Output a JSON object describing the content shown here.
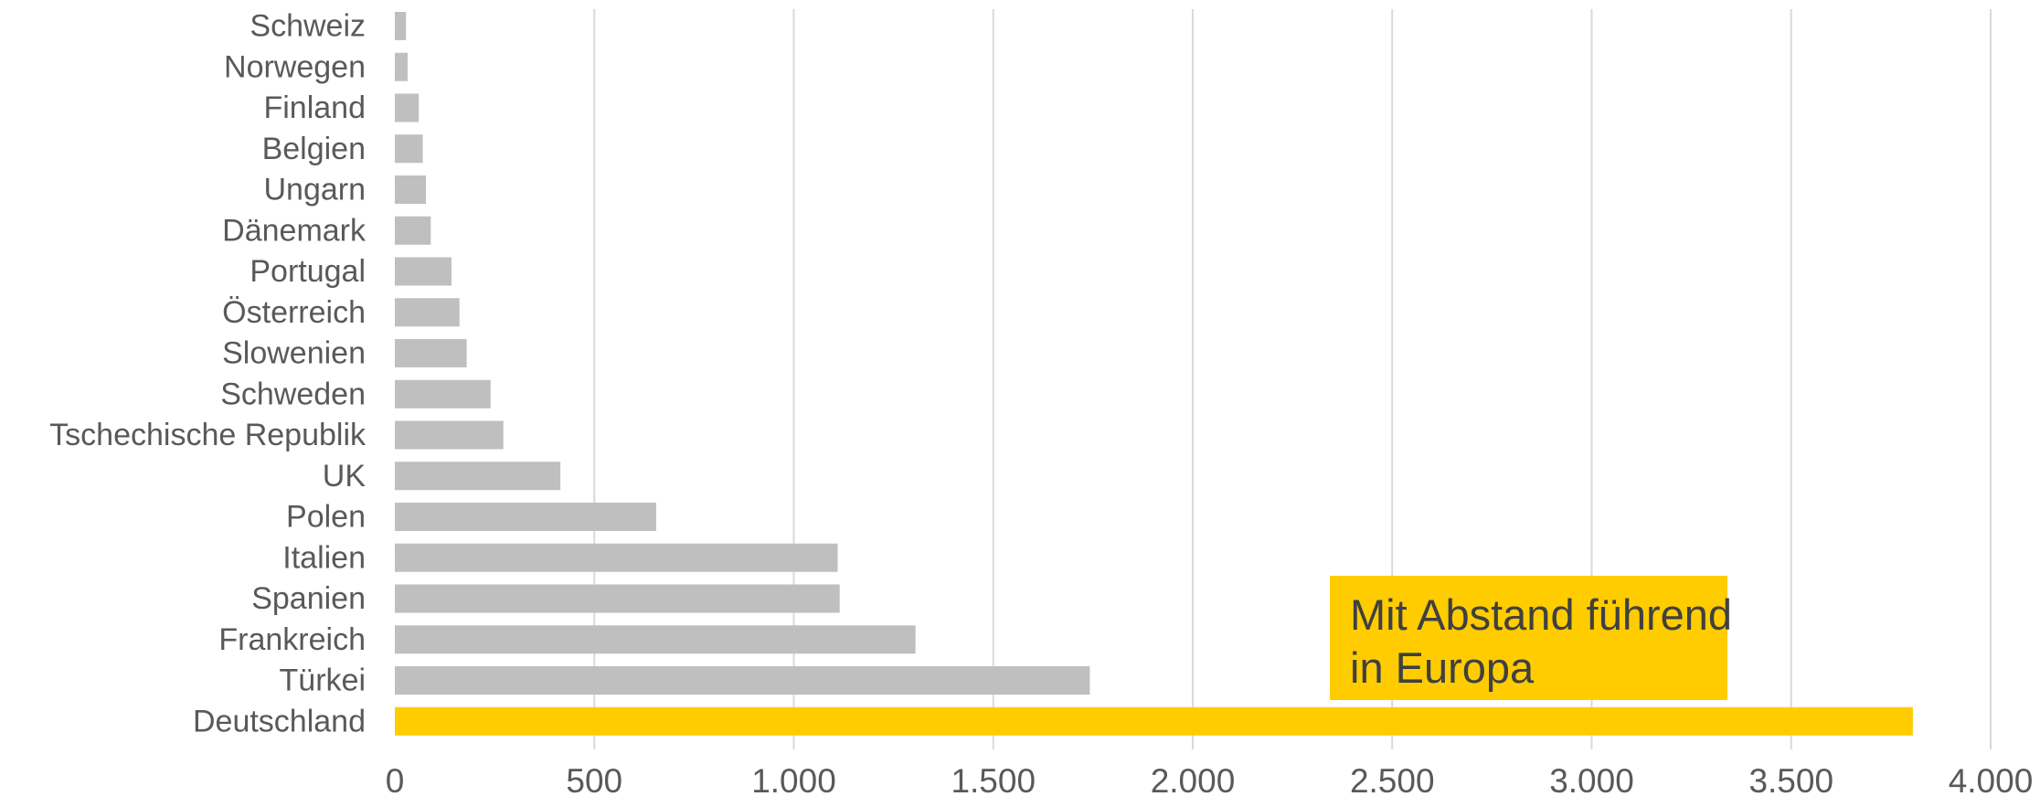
{
  "chart_data": {
    "type": "bar",
    "orientation": "horizontal",
    "categories": [
      "Schweiz",
      "Norwegen",
      "Finland",
      "Belgien",
      "Ungarn",
      "Dänemark",
      "Portugal",
      "Österreich",
      "Slowenien",
      "Schweden",
      "Tschechische Republik",
      "UK",
      "Polen",
      "Italien",
      "Spanien",
      "Frankreich",
      "Türkei",
      "Deutschland"
    ],
    "values": [
      28,
      32,
      60,
      70,
      78,
      90,
      142,
      162,
      180,
      240,
      272,
      415,
      655,
      1110,
      1115,
      1305,
      1742,
      3805
    ],
    "highlight": "Deutschland",
    "xlim": [
      0,
      4000
    ],
    "xticks": [
      0,
      500,
      1000,
      1500,
      2000,
      2500,
      3000,
      3500,
      4000
    ],
    "xtick_labels": [
      "0",
      "500",
      "1.000",
      "1.500",
      "2.000",
      "2.500",
      "3.000",
      "3.500",
      "4.000"
    ],
    "grid": "vertical",
    "title": "",
    "xlabel": "",
    "ylabel": "",
    "colors": {
      "bar": "#bfbfbf",
      "highlight": "#ffcc00",
      "grid": "#d9d9d9",
      "text": "#595959"
    },
    "annotation": {
      "lines": [
        "Mit Abstand führend",
        "in Europa"
      ],
      "background": "#ffcc00",
      "text_color": "#404040"
    }
  }
}
